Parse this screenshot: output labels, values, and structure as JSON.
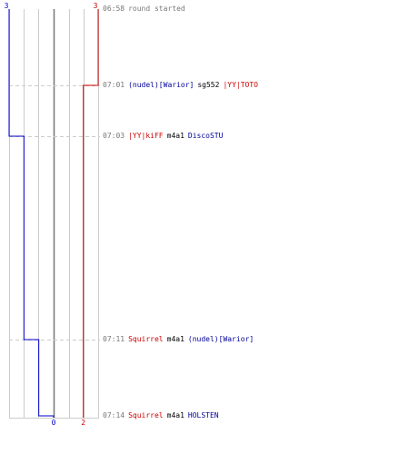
{
  "chart_data": {
    "type": "line",
    "title": "",
    "series": [
      {
        "color": "#0000cc",
        "start_label": "3",
        "end_label": "0",
        "steps": [
          {
            "time": "06:58",
            "value": 3
          },
          {
            "time": "07:03",
            "value": 2
          },
          {
            "time": "07:11",
            "value": 1
          },
          {
            "time": "07:14",
            "value": 0
          }
        ]
      },
      {
        "color": "#cc0000",
        "start_label": "3",
        "end_label": "2",
        "steps": [
          {
            "time": "06:58",
            "value": 3
          },
          {
            "time": "07:01",
            "value": 2
          }
        ]
      }
    ],
    "scale_min": 0,
    "scale_max": 3,
    "events": [
      {
        "time": "06:58",
        "parts": [
          {
            "text": "round started",
            "style": "ev"
          }
        ]
      },
      {
        "time": "07:01",
        "parts": [
          {
            "text": "(nudel)[Warior]",
            "style": "blue"
          },
          {
            "text": "sg552",
            "style": "blk"
          },
          {
            "text": "|YY|TOTO",
            "style": "red"
          }
        ]
      },
      {
        "time": "07:03",
        "parts": [
          {
            "text": "|YY|kiFF",
            "style": "red"
          },
          {
            "text": "m4a1",
            "style": "blk"
          },
          {
            "text": "DiscoSTU",
            "style": "blue"
          }
        ]
      },
      {
        "time": "07:11",
        "parts": [
          {
            "text": "Squirrel",
            "style": "red"
          },
          {
            "text": "m4a1",
            "style": "blk"
          },
          {
            "text": "(nudel)[Warior]",
            "style": "blue"
          }
        ]
      },
      {
        "time": "07:14",
        "parts": [
          {
            "text": "Squirrel",
            "style": "red"
          },
          {
            "text": "m4a1",
            "style": "blk"
          },
          {
            "text": "HOLSTEN",
            "style": "blue"
          }
        ]
      }
    ]
  }
}
